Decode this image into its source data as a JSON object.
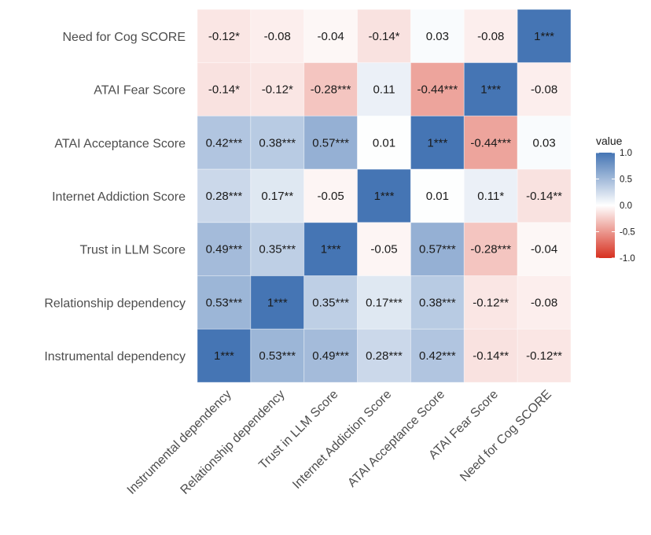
{
  "chart_data": {
    "type": "heatmap",
    "title": "",
    "xlabel": "",
    "ylabel": "",
    "variables": [
      "Instrumental dependency",
      "Relationship dependency",
      "Trust in LLM Score",
      "Internet Addiction Score",
      "ATAI Acceptance Score",
      "ATAI Fear Score",
      "Need for Cog SCORE"
    ],
    "x_categories": [
      "Instrumental dependency",
      "Relationship dependency",
      "Trust in LLM Score",
      "Internet Addiction Score",
      "ATAI Acceptance Score",
      "ATAI Fear Score",
      "Need for Cog SCORE"
    ],
    "y_categories_top_to_bottom": [
      "Need for Cog SCORE",
      "ATAI Fear Score",
      "ATAI Acceptance Score",
      "Internet Addiction Score",
      "Trust in LLM Score",
      "Relationship dependency",
      "Instrumental dependency"
    ],
    "rows_top_to_bottom": [
      {
        "values": [
          -0.12,
          -0.08,
          -0.04,
          -0.14,
          0.03,
          -0.08,
          1
        ],
        "labels": [
          "-0.12*",
          "-0.08",
          "-0.04",
          "-0.14*",
          "0.03",
          "-0.08",
          "1***"
        ]
      },
      {
        "values": [
          -0.14,
          -0.12,
          -0.28,
          0.11,
          -0.44,
          1,
          -0.08
        ],
        "labels": [
          "-0.14*",
          "-0.12*",
          "-0.28***",
          "0.11",
          "-0.44***",
          "1***",
          "-0.08"
        ]
      },
      {
        "values": [
          0.42,
          0.38,
          0.57,
          0.01,
          1,
          -0.44,
          0.03
        ],
        "labels": [
          "0.42***",
          "0.38***",
          "0.57***",
          "0.01",
          "1***",
          "-0.44***",
          "0.03"
        ]
      },
      {
        "values": [
          0.28,
          0.17,
          -0.05,
          1,
          0.01,
          0.11,
          -0.14
        ],
        "labels": [
          "0.28***",
          "0.17**",
          "-0.05",
          "1***",
          "0.01",
          "0.11*",
          "-0.14**"
        ]
      },
      {
        "values": [
          0.49,
          0.35,
          1,
          -0.05,
          0.57,
          -0.28,
          -0.04
        ],
        "labels": [
          "0.49***",
          "0.35***",
          "1***",
          "-0.05",
          "0.57***",
          "-0.28***",
          "-0.04"
        ]
      },
      {
        "values": [
          0.53,
          1,
          0.35,
          0.17,
          0.38,
          -0.12,
          -0.08
        ],
        "labels": [
          "0.53***",
          "1***",
          "0.35***",
          "0.17***",
          "0.38***",
          "-0.12**",
          "-0.08"
        ]
      },
      {
        "values": [
          1,
          0.53,
          0.49,
          0.28,
          0.42,
          -0.14,
          -0.12
        ],
        "labels": [
          "1***",
          "0.53***",
          "0.49***",
          "0.28***",
          "0.42***",
          "-0.14**",
          "-0.12**"
        ]
      }
    ],
    "color_scale": {
      "low": "#d7301f",
      "mid": "#ffffff",
      "high": "#4575b4",
      "limits": [
        -1,
        1
      ]
    },
    "legend": {
      "title": "value",
      "position": "right",
      "ticks": [
        1.0,
        0.5,
        0.0,
        -0.5,
        -1.0
      ],
      "tick_labels": [
        "1.0",
        "0.5",
        "0.0",
        "-0.5",
        "-1.0"
      ]
    },
    "x_tick_rotation_deg": 45
  }
}
